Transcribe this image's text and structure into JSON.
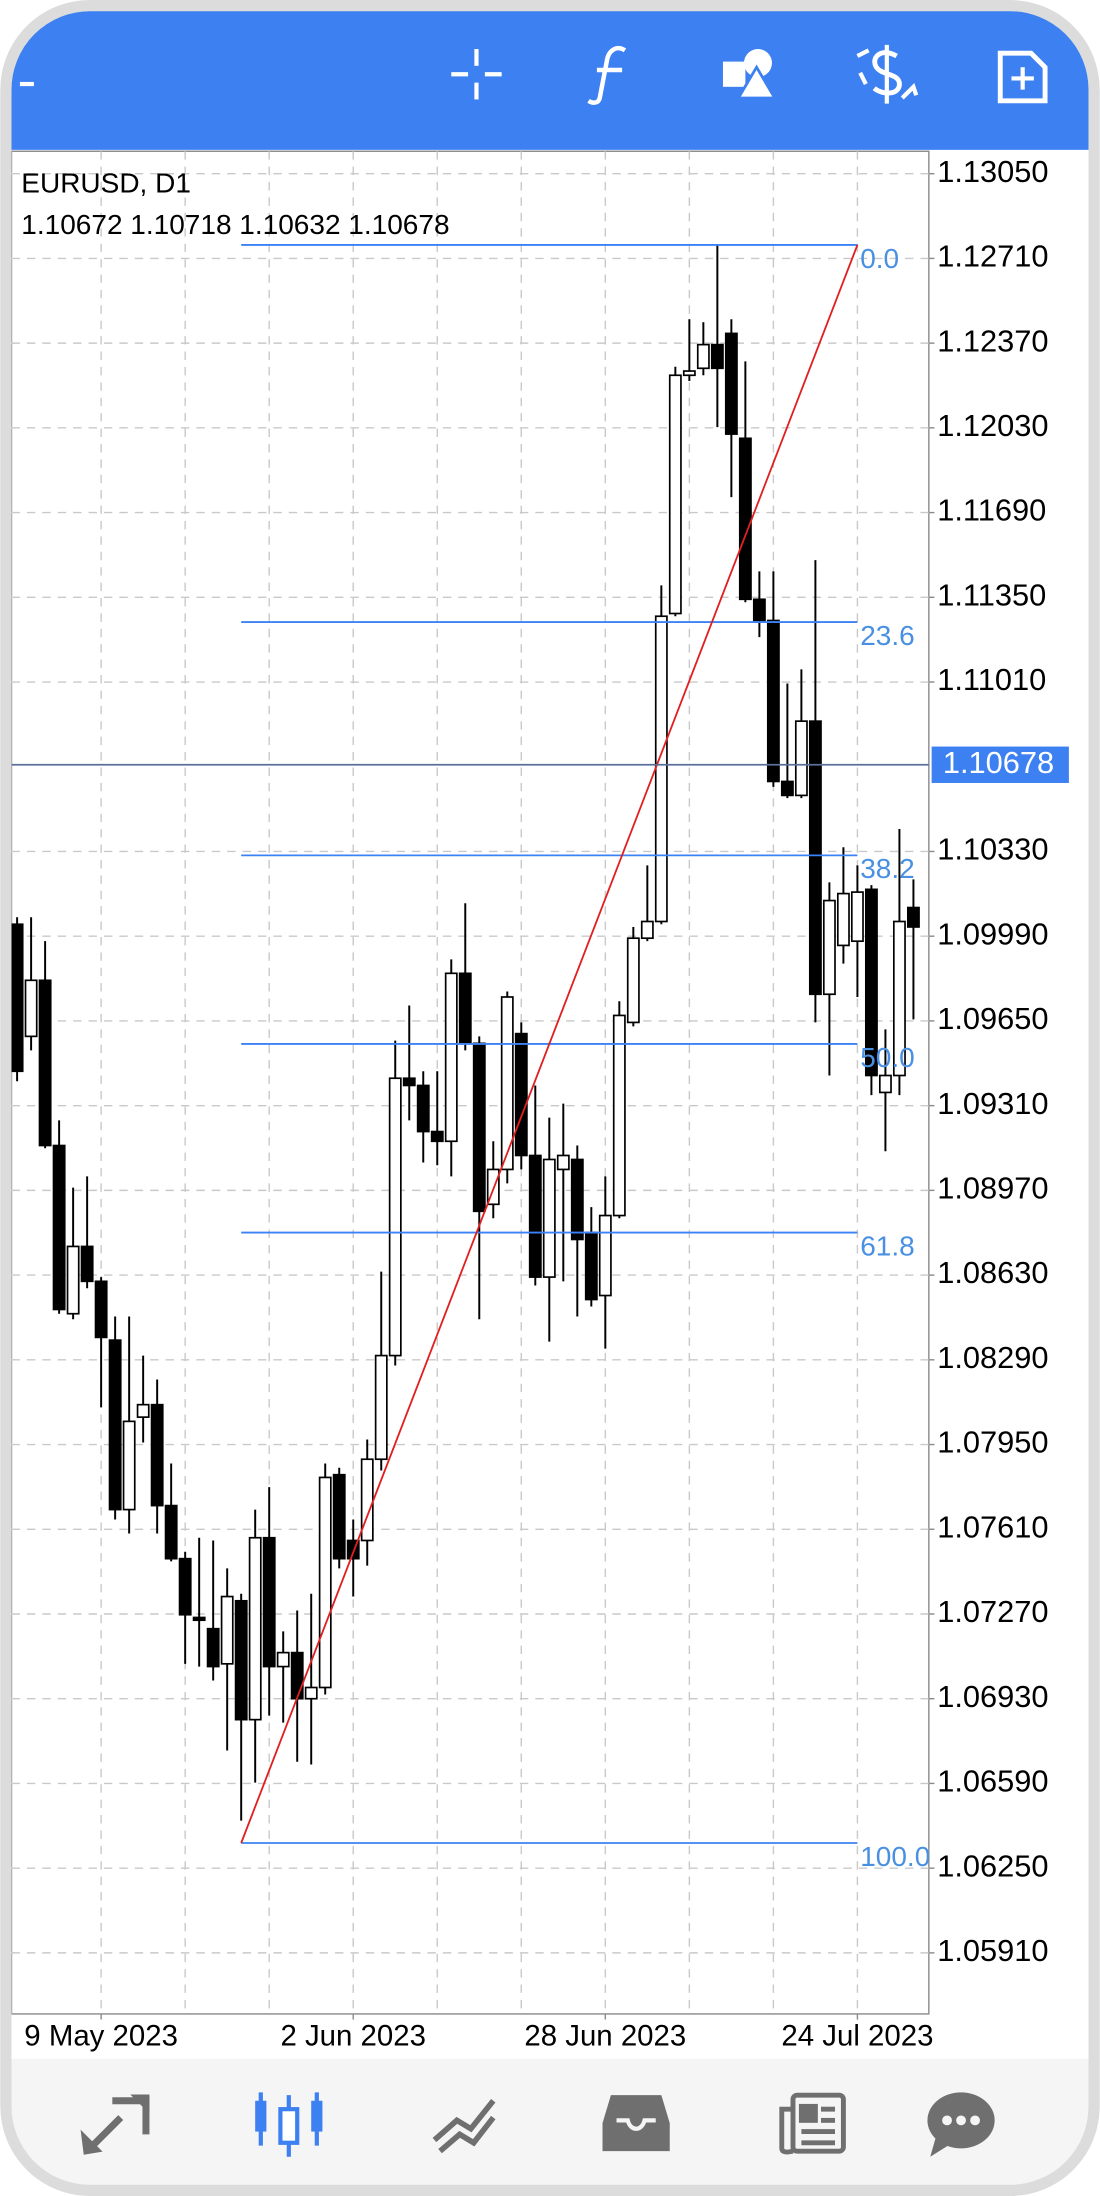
{
  "chart_data": {
    "type": "candlestick",
    "title": "EURUSD, D1",
    "ohlc": [
      1.10672,
      1.10718,
      1.10632,
      1.10678
    ],
    "categories": [
      null,
      null,
      null,
      null,
      null,
      null,
      "9 May 2023",
      null,
      null,
      null,
      null,
      null,
      null,
      null,
      null,
      null,
      null,
      null,
      null,
      null,
      null,
      null,
      null,
      null,
      "2 Jun 2023",
      null,
      null,
      null,
      null,
      null,
      null,
      null,
      null,
      null,
      null,
      null,
      null,
      null,
      null,
      null,
      null,
      null,
      "28 Jun 2023",
      null,
      null,
      null,
      null,
      null,
      null,
      null,
      null,
      null,
      null,
      null,
      null,
      null,
      null,
      null,
      null,
      null,
      "24 Jul 2023",
      null,
      null,
      null,
      null
    ],
    "open": [
      1.10038,
      1.09588,
      1.09813,
      1.0915,
      1.08475,
      1.08745,
      1.08605,
      1.08369,
      1.07689,
      1.0806,
      1.0811,
      1.07705,
      1.07492,
      1.07256,
      1.07211,
      1.0707,
      1.07323,
      1.06846,
      1.07576,
      1.07059,
      1.07115,
      1.0693,
      1.06975,
      1.07829,
      1.07565,
      1.07565,
      1.07891,
      1.08307,
      1.0942,
      1.09391,
      1.09206,
      1.09167,
      1.09841,
      1.0956,
      1.08914,
      1.09054,
      1.09599,
      1.0911,
      1.08622,
      1.09054,
      1.09094,
      1.08801,
      1.08548,
      1.08869,
      1.09644,
      1.09982,
      1.10049,
      1.11285,
      1.12241,
      1.12269,
      1.12364,
      1.12409,
      1.11988,
      1.11342,
      1.11257,
      1.10611,
      1.10555,
      1.10853,
      1.09757,
      1.09953,
      1.0997,
      1.10178,
      1.09363,
      1.09431,
      1.10105
    ],
    "high": [
      1.10066,
      1.10066,
      1.0997,
      1.09251,
      1.08981,
      1.09026,
      1.08622,
      1.08464,
      1.08464,
      1.08307,
      1.08211,
      1.07874,
      1.0752,
      1.07576,
      1.07565,
      1.07453,
      1.07351,
      1.07689,
      1.07779,
      1.072,
      1.07284,
      1.07351,
      1.07874,
      1.07857,
      1.07649,
      1.0797,
      1.08644,
      1.09571,
      1.09712,
      1.09448,
      1.09448,
      1.09897,
      1.10122,
      1.09588,
      1.09167,
      1.09768,
      1.09644,
      1.09391,
      1.09262,
      1.09318,
      1.0915,
      1.08903,
      1.09026,
      1.09729,
      1.10027,
      1.10274,
      1.11398,
      1.12275,
      1.12466,
      1.12454,
      1.12764,
      1.12466,
      1.12297,
      1.11454,
      1.11454,
      1.11004,
      1.11061,
      1.11499,
      1.10206,
      1.10347,
      1.10274,
      1.10195,
      1.09616,
      1.1042,
      1.10218
    ],
    "low": [
      1.09408,
      1.09532,
      1.09139,
      1.08475,
      1.08453,
      1.08577,
      1.08099,
      1.07649,
      1.07593,
      1.07958,
      1.07593,
      1.07481,
      1.0707,
      1.07059,
      1.07003,
      1.06722,
      1.06441,
      1.06593,
      1.06862,
      1.06834,
      1.06677,
      1.06666,
      1.06947,
      1.07453,
      1.0734,
      1.07464,
      1.07846,
      1.08267,
      1.09251,
      1.09082,
      1.09071,
      1.09026,
      1.09532,
      1.08453,
      1.08858,
      1.08998,
      1.09054,
      1.08588,
      1.08363,
      1.08605,
      1.08464,
      1.08504,
      1.08335,
      1.08858,
      1.09628,
      1.0997,
      1.10038,
      1.11274,
      1.12218,
      1.12241,
      1.12033,
      1.11752,
      1.1133,
      1.1119,
      1.10589,
      1.10544,
      1.10544,
      1.09644,
      1.09431,
      1.0988,
      1.09746,
      1.09352,
      1.09127,
      1.09352,
      1.09656
    ],
    "close": [
      1.09448,
      1.09813,
      1.0915,
      1.08492,
      1.08745,
      1.08605,
      1.0838,
      1.07689,
      1.08043,
      1.0811,
      1.07705,
      1.07492,
      1.07267,
      1.07245,
      1.07059,
      1.0734,
      1.06846,
      1.07576,
      1.07059,
      1.07115,
      1.0693,
      1.06975,
      1.07818,
      1.07492,
      1.07492,
      1.07891,
      1.08307,
      1.0942,
      1.09391,
      1.09206,
      1.09167,
      1.09841,
      1.0956,
      1.08886,
      1.09054,
      1.09746,
      1.0911,
      1.08622,
      1.09094,
      1.0911,
      1.08773,
      1.08532,
      1.08869,
      1.09672,
      1.09982,
      1.10049,
      1.11274,
      1.12241,
      1.12258,
      1.12364,
      1.12269,
      1.12005,
      1.11342,
      1.11257,
      1.10611,
      1.10555,
      1.10853,
      1.09757,
      1.10133,
      1.10161,
      1.10167,
      1.09431,
      1.09431,
      1.10049,
      1.10027
    ],
    "up_color": "#ffffff",
    "down_color": "#000000",
    "ylim": [
      1.05665,
      1.1314
    ],
    "yticks": [
      {
        "value": 1.1305,
        "label": "1.13050"
      },
      {
        "value": 1.1271,
        "label": "1.12710"
      },
      {
        "value": 1.1237,
        "label": "1.12370"
      },
      {
        "value": 1.1203,
        "label": "1.12030"
      },
      {
        "value": 1.1169,
        "label": "1.11690"
      },
      {
        "value": 1.1135,
        "label": "1.11350"
      },
      {
        "value": 1.1101,
        "label": "1.11010"
      },
      {
        "value": 1.1033,
        "label": "1.10330"
      },
      {
        "value": 1.0999,
        "label": "1.09990"
      },
      {
        "value": 1.0965,
        "label": "1.09650"
      },
      {
        "value": 1.0931,
        "label": "1.09310"
      },
      {
        "value": 1.0897,
        "label": "1.08970"
      },
      {
        "value": 1.0863,
        "label": "1.08630"
      },
      {
        "value": 1.0829,
        "label": "1.08290"
      },
      {
        "value": 1.0795,
        "label": "1.07950"
      },
      {
        "value": 1.0761,
        "label": "1.07610"
      },
      {
        "value": 1.0727,
        "label": "1.07270"
      },
      {
        "value": 1.0693,
        "label": "1.06930"
      },
      {
        "value": 1.0659,
        "label": "1.06590"
      },
      {
        "value": 1.0625,
        "label": "1.06250"
      },
      {
        "value": 1.0591,
        "label": "1.05910"
      }
    ],
    "grid": true,
    "fibonacci": {
      "start": {
        "index": 16,
        "price": 1.06351
      },
      "end": {
        "index": 60,
        "price": 1.12764
      },
      "color": "#3b82f6",
      "trend_color": "#e02020",
      "levels": [
        {
          "value": 0,
          "label": "0.0"
        },
        {
          "value": 23.6,
          "label": "23.6"
        },
        {
          "value": 38.2,
          "label": "38.2"
        },
        {
          "value": 50,
          "label": "50.0"
        },
        {
          "value": 61.8,
          "label": "61.8"
        },
        {
          "value": 100,
          "label": "100.0"
        }
      ]
    }
  }
}
